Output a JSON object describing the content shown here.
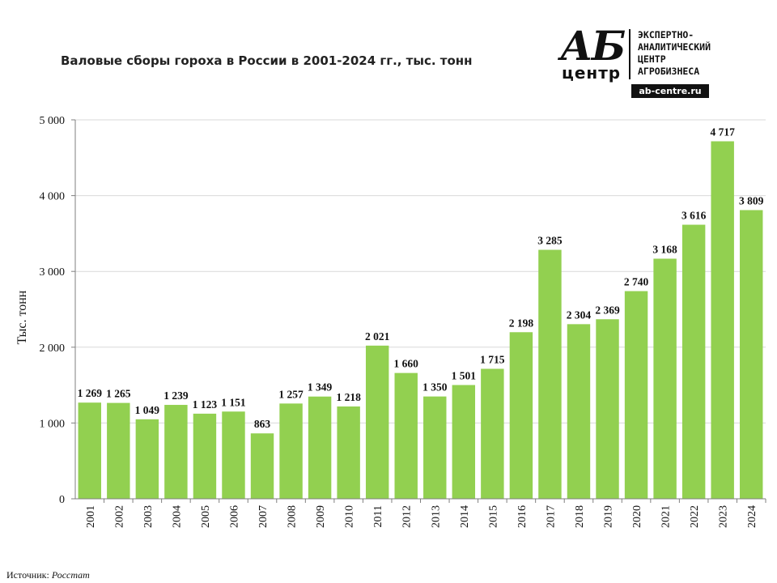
{
  "header": {
    "title": "Валовые сборы гороха в России в 2001-2024 гг., тыс. тонн"
  },
  "logo": {
    "mark_top": "АБ",
    "mark_bottom": "центр",
    "lines": [
      "ЭКСПЕРТНО-",
      "АНАЛИТИЧЕСКИЙ",
      "ЦЕНТР",
      "АГРОБИЗНЕСА"
    ],
    "site": "ab-centre.ru"
  },
  "source": {
    "label": "Источник:",
    "value": "Росстат"
  },
  "chart_data": {
    "type": "bar",
    "categories": [
      "2001",
      "2002",
      "2003",
      "2004",
      "2005",
      "2006",
      "2007",
      "2008",
      "2009",
      "2010",
      "2011",
      "2012",
      "2013",
      "2014",
      "2015",
      "2016",
      "2017",
      "2018",
      "2019",
      "2020",
      "2021",
      "2022",
      "2023",
      "2024"
    ],
    "values": [
      1269,
      1265,
      1049,
      1239,
      1123,
      1151,
      863,
      1257,
      1349,
      1218,
      2021,
      1660,
      1350,
      1501,
      1715,
      2198,
      3285,
      2304,
      2369,
      2740,
      3168,
      3616,
      4717,
      3809
    ],
    "value_labels": [
      "1 269",
      "1 265",
      "1 049",
      "1 239",
      "1 123",
      "1 151",
      "863",
      "1 257",
      "1 349",
      "1 218",
      "2 021",
      "1 660",
      "1 350",
      "1 501",
      "1 715",
      "2 198",
      "3 285",
      "2 304",
      "2 369",
      "2 740",
      "3 168",
      "3 616",
      "4 717",
      "3 809"
    ],
    "ylabel": "Тыс. тонн",
    "ylim": [
      0,
      5000
    ],
    "yticks": [
      0,
      1000,
      2000,
      3000,
      4000,
      5000
    ],
    "ytick_labels": [
      "0",
      "1 000",
      "2 000",
      "3 000",
      "4 000",
      "5 000"
    ],
    "grid": true,
    "bar_color": "#92d050"
  }
}
